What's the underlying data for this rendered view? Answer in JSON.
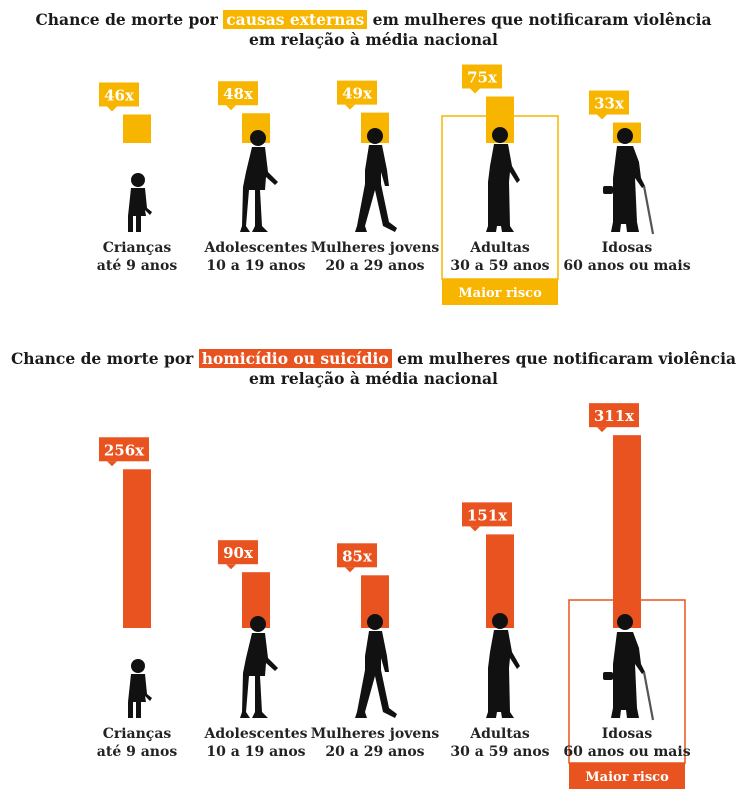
{
  "chart_data": [
    {
      "type": "bar",
      "title_before": "Chance de morte por",
      "title_highlight": "causas externas",
      "title_after": "em mulheres que notificaram violência",
      "title_line2": "em relação à média nacional",
      "value_suffix": "x",
      "accent_color": "#f7b500",
      "categories": [
        {
          "name": "Crianças",
          "range": "até 9 anos",
          "icon": "child-silhouette-icon"
        },
        {
          "name": "Adolescentes",
          "range": "10 a 19 anos",
          "icon": "teen-silhouette-icon"
        },
        {
          "name": "Mulheres jovens",
          "range": "20 a 29 anos",
          "icon": "young-woman-silhouette-icon"
        },
        {
          "name": "Adultas",
          "range": "30 a 59 anos",
          "icon": "adult-woman-silhouette-icon"
        },
        {
          "name": "Idosas",
          "range": "60 anos ou mais",
          "icon": "elderly-woman-silhouette-icon"
        }
      ],
      "values": [
        46,
        48,
        49,
        75,
        33
      ],
      "highlight_index": 3,
      "highlight_label": "Maior risco"
    },
    {
      "type": "bar",
      "title_before": "Chance de morte por",
      "title_highlight": "homicídio ou suicídio",
      "title_after": "em mulheres que notificaram violência",
      "title_line2": "em relação à média nacional",
      "value_suffix": "x",
      "accent_color": "#e8531f",
      "categories": [
        {
          "name": "Crianças",
          "range": "até 9 anos",
          "icon": "child-silhouette-icon"
        },
        {
          "name": "Adolescentes",
          "range": "10 a 19 anos",
          "icon": "teen-silhouette-icon"
        },
        {
          "name": "Mulheres jovens",
          "range": "20 a 29 anos",
          "icon": "young-woman-silhouette-icon"
        },
        {
          "name": "Adultas",
          "range": "30 a 59 anos",
          "icon": "adult-woman-silhouette-icon"
        },
        {
          "name": "Idosas",
          "range": "60 anos ou mais",
          "icon": "elderly-woman-silhouette-icon"
        }
      ],
      "values": [
        256,
        90,
        85,
        151,
        311
      ],
      "highlight_index": 4,
      "highlight_label": "Maior risco"
    }
  ]
}
